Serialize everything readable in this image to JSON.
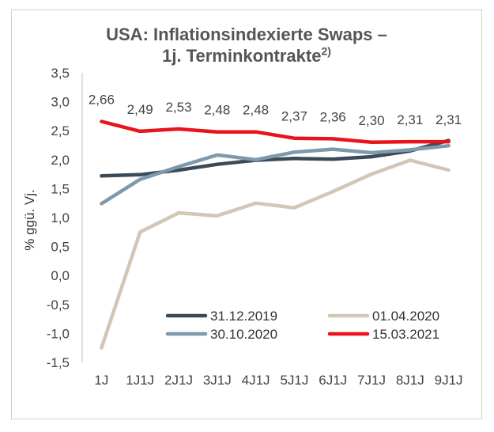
{
  "chart_data": {
    "type": "line",
    "title_line1": "USA: Inflationsindexierte Swaps –",
    "title_line2": "1j. Terminkontrakte",
    "title_sup": "2)",
    "xlabel": "",
    "ylabel": "% ggü. Vj.",
    "ylim": [
      -1.5,
      3.5
    ],
    "y_ticks": [
      -1.5,
      -1.0,
      -0.5,
      0.0,
      0.5,
      1.0,
      1.5,
      2.0,
      2.5,
      3.0,
      3.5
    ],
    "y_tick_labels": [
      "-1,5",
      "-1,0",
      "-0,5",
      "0,0",
      "0,5",
      "1,0",
      "1,5",
      "2,0",
      "2,5",
      "3,0",
      "3,5"
    ],
    "categories": [
      "1J",
      "1J1J",
      "2J1J",
      "3J1J",
      "4J1J",
      "5J1J",
      "6J1J",
      "7J1J",
      "8J1J",
      "9J1J"
    ],
    "series": [
      {
        "name": "31.12.2019",
        "color": "#3b4a57",
        "values": [
          1.72,
          1.74,
          1.82,
          1.92,
          1.99,
          2.02,
          2.01,
          2.05,
          2.15,
          2.33
        ]
      },
      {
        "name": "01.04.2020",
        "color": "#d2c6b4",
        "values": [
          -1.25,
          0.75,
          1.08,
          1.03,
          1.25,
          1.17,
          1.45,
          1.75,
          1.99,
          1.82
        ]
      },
      {
        "name": "30.10.2020",
        "color": "#7f99ab",
        "values": [
          1.24,
          1.66,
          1.88,
          2.08,
          2.0,
          2.13,
          2.18,
          2.12,
          2.17,
          2.24
        ]
      },
      {
        "name": "15.03.2021",
        "color": "#e8141b",
        "values": [
          2.66,
          2.49,
          2.53,
          2.48,
          2.48,
          2.37,
          2.36,
          2.3,
          2.31,
          2.31
        ]
      }
    ],
    "data_labels": [
      "2,66",
      "2,49",
      "2,53",
      "2,48",
      "2,48",
      "2,37",
      "2,36",
      "2,30",
      "2,31",
      "2,31"
    ],
    "legend_position": "bottom-inside"
  }
}
